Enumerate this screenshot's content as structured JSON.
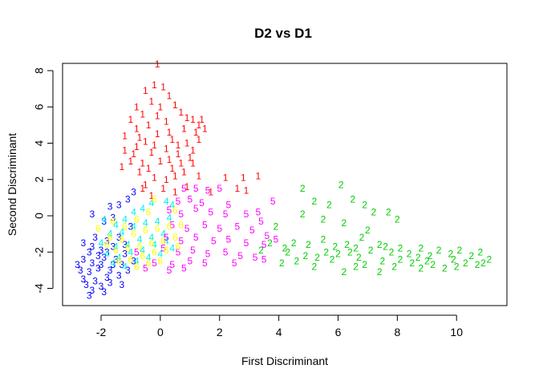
{
  "chart_data": {
    "type": "scatter",
    "title": "D2 vs D1",
    "xlabel": "First Discriminant",
    "ylabel": "Second Discriminant",
    "xlim": [
      -3.3,
      11.7
    ],
    "ylim": [
      -4.95,
      8.4
    ],
    "xticks": [
      -2,
      0,
      2,
      4,
      6,
      8,
      10
    ],
    "yticks": [
      -4,
      -2,
      0,
      2,
      4,
      6,
      8
    ],
    "xtick_labels": [
      "-2",
      "0",
      "2",
      "4",
      "6",
      "8",
      "10"
    ],
    "ytick_labels": [
      "-4",
      "-2",
      "0",
      "2",
      "4",
      "6",
      "8"
    ],
    "marker": "class-label digits",
    "grid": false,
    "legend": "none",
    "series": [
      {
        "label": "1",
        "color": "#ff0000",
        "points": [
          [
            -0.1,
            8.35
          ],
          [
            -0.2,
            7.2
          ],
          [
            -0.5,
            6.9
          ],
          [
            0.1,
            7.1
          ],
          [
            -0.3,
            6.3
          ],
          [
            0.3,
            6.6
          ],
          [
            -0.8,
            6.0
          ],
          [
            -0.6,
            5.6
          ],
          [
            0.0,
            6.0
          ],
          [
            0.5,
            6.1
          ],
          [
            0.7,
            5.7
          ],
          [
            1.1,
            5.3
          ],
          [
            1.3,
            5.0
          ],
          [
            -1.0,
            5.3
          ],
          [
            -0.8,
            4.8
          ],
          [
            -0.4,
            5.0
          ],
          [
            0.2,
            5.2
          ],
          [
            0.8,
            4.8
          ],
          [
            1.2,
            4.6
          ],
          [
            -1.2,
            4.4
          ],
          [
            -0.7,
            4.3
          ],
          [
            -0.1,
            4.5
          ],
          [
            0.4,
            4.2
          ],
          [
            0.9,
            4.0
          ],
          [
            1.3,
            4.2
          ],
          [
            -1.2,
            3.6
          ],
          [
            -0.8,
            3.8
          ],
          [
            -0.3,
            3.5
          ],
          [
            0.2,
            3.7
          ],
          [
            0.6,
            3.4
          ],
          [
            1.0,
            3.2
          ],
          [
            -1.0,
            3.0
          ],
          [
            -0.6,
            2.9
          ],
          [
            0.0,
            3.0
          ],
          [
            0.4,
            2.6
          ],
          [
            0.8,
            2.4
          ],
          [
            -0.7,
            2.4
          ],
          [
            -0.2,
            2.1
          ],
          [
            0.2,
            2.0
          ],
          [
            -1.3,
            2.7
          ],
          [
            -0.5,
            1.7
          ],
          [
            0.1,
            1.5
          ],
          [
            0.5,
            1.3
          ],
          [
            -0.3,
            1.1
          ],
          [
            -0.6,
            1.5
          ],
          [
            1.5,
            4.8
          ],
          [
            1.4,
            5.3
          ],
          [
            0.9,
            5.4
          ],
          [
            -0.1,
            5.5
          ],
          [
            0.3,
            4.6
          ],
          [
            -0.5,
            4.1
          ],
          [
            -0.2,
            3.9
          ],
          [
            0.6,
            3.9
          ],
          [
            1.1,
            3.6
          ],
          [
            0.3,
            3.1
          ],
          [
            -0.9,
            3.4
          ],
          [
            1.1,
            2.9
          ],
          [
            0.7,
            2.9
          ],
          [
            -0.4,
            2.6
          ],
          [
            0.5,
            2.2
          ],
          [
            2.2,
            2.1
          ],
          [
            2.8,
            2.1
          ],
          [
            3.3,
            2.2
          ],
          [
            2.6,
            1.5
          ],
          [
            2.9,
            1.4
          ],
          [
            1.3,
            2.2
          ],
          [
            0.9,
            1.6
          ],
          [
            1.7,
            1.3
          ]
        ]
      },
      {
        "label": "2",
        "color": "#00cd00",
        "points": [
          [
            4.8,
            1.5
          ],
          [
            6.1,
            1.7
          ],
          [
            5.2,
            0.8
          ],
          [
            5.7,
            0.6
          ],
          [
            6.5,
            0.9
          ],
          [
            6.2,
            -0.4
          ],
          [
            6.9,
            0.6
          ],
          [
            7.2,
            0.2
          ],
          [
            7.7,
            0.2
          ],
          [
            8.0,
            -0.2
          ],
          [
            4.8,
            0.1
          ],
          [
            5.5,
            -0.2
          ],
          [
            3.9,
            -0.6
          ],
          [
            4.5,
            -1.5
          ],
          [
            5.0,
            -1.6
          ],
          [
            5.5,
            -1.3
          ],
          [
            6.3,
            -1.6
          ],
          [
            6.8,
            -1.2
          ],
          [
            7.0,
            -0.8
          ],
          [
            4.2,
            -1.8
          ],
          [
            4.9,
            -2.2
          ],
          [
            5.3,
            -2.3
          ],
          [
            5.6,
            -2.0
          ],
          [
            6.0,
            -2.1
          ],
          [
            6.4,
            -2.0
          ],
          [
            6.7,
            -2.3
          ],
          [
            7.1,
            -1.9
          ],
          [
            7.4,
            -1.6
          ],
          [
            7.8,
            -2.0
          ],
          [
            8.1,
            -1.8
          ],
          [
            8.4,
            -2.1
          ],
          [
            8.8,
            -1.8
          ],
          [
            9.1,
            -2.2
          ],
          [
            9.4,
            -1.9
          ],
          [
            9.8,
            -2.1
          ],
          [
            10.1,
            -1.9
          ],
          [
            10.5,
            -2.2
          ],
          [
            10.8,
            -2.0
          ],
          [
            11.1,
            -2.4
          ],
          [
            4.1,
            -2.6
          ],
          [
            4.6,
            -2.5
          ],
          [
            5.2,
            -2.8
          ],
          [
            6.2,
            -3.1
          ],
          [
            6.9,
            -2.7
          ],
          [
            7.5,
            -2.5
          ],
          [
            7.9,
            -2.8
          ],
          [
            8.5,
            -2.6
          ],
          [
            9.2,
            -2.7
          ],
          [
            9.6,
            -2.9
          ],
          [
            10.3,
            -2.6
          ],
          [
            10.7,
            -2.7
          ],
          [
            7.4,
            -3.1
          ],
          [
            8.1,
            -2.4
          ],
          [
            9.0,
            -2.5
          ],
          [
            10.0,
            -2.8
          ],
          [
            10.9,
            -2.6
          ],
          [
            4.3,
            -2.0
          ],
          [
            5.9,
            -1.7
          ],
          [
            6.6,
            -1.8
          ],
          [
            7.6,
            -1.7
          ],
          [
            8.7,
            -2.3
          ],
          [
            9.9,
            -2.4
          ],
          [
            5.8,
            -2.4
          ],
          [
            3.7,
            -1.5
          ],
          [
            3.4,
            -1.9
          ],
          [
            6.6,
            -2.8
          ],
          [
            8.8,
            -2.9
          ]
        ]
      },
      {
        "label": "3",
        "color": "#0000ff",
        "points": [
          [
            -1.7,
            0.5
          ],
          [
            -1.4,
            0.6
          ],
          [
            -1.1,
            0.9
          ],
          [
            -0.9,
            1.3
          ],
          [
            -2.3,
            0.1
          ],
          [
            -1.9,
            -0.3
          ],
          [
            -1.6,
            -0.1
          ],
          [
            -2.6,
            -1.5
          ],
          [
            -2.2,
            -1.2
          ],
          [
            -1.8,
            -1.4
          ],
          [
            -2.4,
            -2.0
          ],
          [
            -2.0,
            -1.9
          ],
          [
            -1.6,
            -1.7
          ],
          [
            -2.6,
            -2.4
          ],
          [
            -2.3,
            -2.6
          ],
          [
            -1.9,
            -2.3
          ],
          [
            -1.5,
            -2.4
          ],
          [
            -1.2,
            -2.1
          ],
          [
            -2.7,
            -3.0
          ],
          [
            -2.4,
            -3.1
          ],
          [
            -2.1,
            -2.9
          ],
          [
            -1.7,
            -3.0
          ],
          [
            -1.3,
            -2.7
          ],
          [
            -2.6,
            -3.5
          ],
          [
            -2.2,
            -3.6
          ],
          [
            -1.8,
            -3.4
          ],
          [
            -1.4,
            -3.3
          ],
          [
            -2.5,
            -3.8
          ],
          [
            -2.3,
            -4.1
          ],
          [
            -2.0,
            -3.9
          ],
          [
            -1.7,
            -3.7
          ],
          [
            -1.3,
            -3.8
          ],
          [
            -2.1,
            -2.2
          ],
          [
            -1.8,
            -2.0
          ],
          [
            -2.3,
            -1.7
          ],
          [
            -1.4,
            -1.2
          ],
          [
            -1.2,
            -1.6
          ],
          [
            -2.0,
            -2.7
          ],
          [
            -1.6,
            -2.7
          ],
          [
            -2.4,
            -4.4
          ],
          [
            -1.9,
            -4.2
          ],
          [
            -1.1,
            -3.0
          ],
          [
            -0.9,
            -2.5
          ],
          [
            -2.8,
            -2.7
          ],
          [
            -1.0,
            -0.6
          ]
        ]
      },
      {
        "label": "4",
        "color": "#00eeee",
        "points": [
          [
            -1.9,
            -0.2
          ],
          [
            -1.5,
            -0.5
          ],
          [
            -1.2,
            -0.2
          ],
          [
            -0.9,
            0.2
          ],
          [
            -0.6,
            0.4
          ],
          [
            -0.3,
            0.7
          ],
          [
            0.2,
            0.8
          ],
          [
            0.4,
            0.6
          ],
          [
            -1.7,
            -1.0
          ],
          [
            -1.3,
            -0.9
          ],
          [
            -0.9,
            -0.6
          ],
          [
            -0.5,
            -0.4
          ],
          [
            -0.1,
            -0.3
          ],
          [
            0.3,
            -0.1
          ],
          [
            -2.0,
            -1.5
          ],
          [
            -1.5,
            -1.7
          ],
          [
            -1.1,
            -1.6
          ],
          [
            -0.7,
            -1.3
          ],
          [
            -0.3,
            -1.2
          ],
          [
            0.1,
            -1.0
          ],
          [
            -1.8,
            -2.1
          ],
          [
            -1.4,
            -2.3
          ],
          [
            -1.0,
            -2.0
          ],
          [
            -0.6,
            -1.9
          ],
          [
            -0.2,
            -1.6
          ],
          [
            0.2,
            -1.4
          ],
          [
            -1.6,
            -2.6
          ],
          [
            -1.2,
            -2.8
          ],
          [
            -0.8,
            -2.5
          ],
          [
            -0.4,
            -2.3
          ],
          [
            0.0,
            -2.1
          ],
          [
            0.4,
            -1.8
          ]
        ]
      },
      {
        "label": "5",
        "color": "#ff00ff",
        "points": [
          [
            0.8,
            1.5
          ],
          [
            1.2,
            1.5
          ],
          [
            1.6,
            1.4
          ],
          [
            2.0,
            1.5
          ],
          [
            0.6,
            0.8
          ],
          [
            1.0,
            0.9
          ],
          [
            1.4,
            0.7
          ],
          [
            2.3,
            0.6
          ],
          [
            3.8,
            0.8
          ],
          [
            0.3,
            0.3
          ],
          [
            0.7,
            0.1
          ],
          [
            1.2,
            0.4
          ],
          [
            1.7,
            0.2
          ],
          [
            2.2,
            0.1
          ],
          [
            2.9,
            0.1
          ],
          [
            3.3,
            0.2
          ],
          [
            3.4,
            -0.3
          ],
          [
            0.4,
            -0.5
          ],
          [
            0.9,
            -0.7
          ],
          [
            1.5,
            -0.5
          ],
          [
            2.0,
            -0.7
          ],
          [
            2.6,
            -0.6
          ],
          [
            3.1,
            -0.8
          ],
          [
            3.6,
            -1.1
          ],
          [
            0.2,
            -1.2
          ],
          [
            0.7,
            -1.4
          ],
          [
            1.2,
            -1.2
          ],
          [
            1.8,
            -1.4
          ],
          [
            2.3,
            -1.3
          ],
          [
            2.9,
            -1.5
          ],
          [
            3.5,
            -1.6
          ],
          [
            3.9,
            -1.3
          ],
          [
            0.1,
            -1.8
          ],
          [
            0.6,
            -2.0
          ],
          [
            1.1,
            -1.9
          ],
          [
            1.6,
            -2.1
          ],
          [
            2.2,
            -2.0
          ],
          [
            2.7,
            -2.2
          ],
          [
            3.2,
            -2.3
          ],
          [
            -0.2,
            -2.6
          ],
          [
            0.4,
            -2.7
          ],
          [
            1.0,
            -2.5
          ],
          [
            1.5,
            -2.6
          ],
          [
            2.5,
            -2.6
          ],
          [
            3.5,
            -2.4
          ],
          [
            -0.5,
            -2.9
          ],
          [
            0.3,
            -3.0
          ],
          [
            0.8,
            -2.9
          ],
          [
            -0.8,
            -2.0
          ]
        ]
      },
      {
        "label": "6",
        "color": "#ffff00",
        "points": [
          [
            -1.6,
            -0.3
          ],
          [
            -1.2,
            -0.6
          ],
          [
            -0.8,
            -0.2
          ],
          [
            -0.4,
            0.2
          ],
          [
            -0.2,
            0.9
          ],
          [
            0.5,
            0.3
          ],
          [
            -1.7,
            -1.2
          ],
          [
            -1.3,
            -1.3
          ],
          [
            -0.9,
            -1.0
          ],
          [
            -0.5,
            -0.8
          ],
          [
            -0.1,
            -0.7
          ],
          [
            0.3,
            -0.6
          ],
          [
            0.7,
            -0.5
          ],
          [
            -1.5,
            -1.9
          ],
          [
            -1.1,
            -1.8
          ],
          [
            -0.7,
            -1.7
          ],
          [
            -0.3,
            -1.5
          ],
          [
            0.1,
            -1.4
          ],
          [
            0.5,
            -1.2
          ],
          [
            -1.4,
            -2.5
          ],
          [
            -1.0,
            -2.4
          ],
          [
            -0.6,
            -2.2
          ],
          [
            -0.2,
            -2.0
          ],
          [
            0.2,
            -1.9
          ],
          [
            0.6,
            -1.7
          ],
          [
            -0.8,
            -2.8
          ],
          [
            -0.4,
            -2.6
          ],
          [
            0.0,
            -2.5
          ],
          [
            -1.8,
            -1.6
          ],
          [
            -2.1,
            -0.7
          ]
        ]
      }
    ]
  }
}
